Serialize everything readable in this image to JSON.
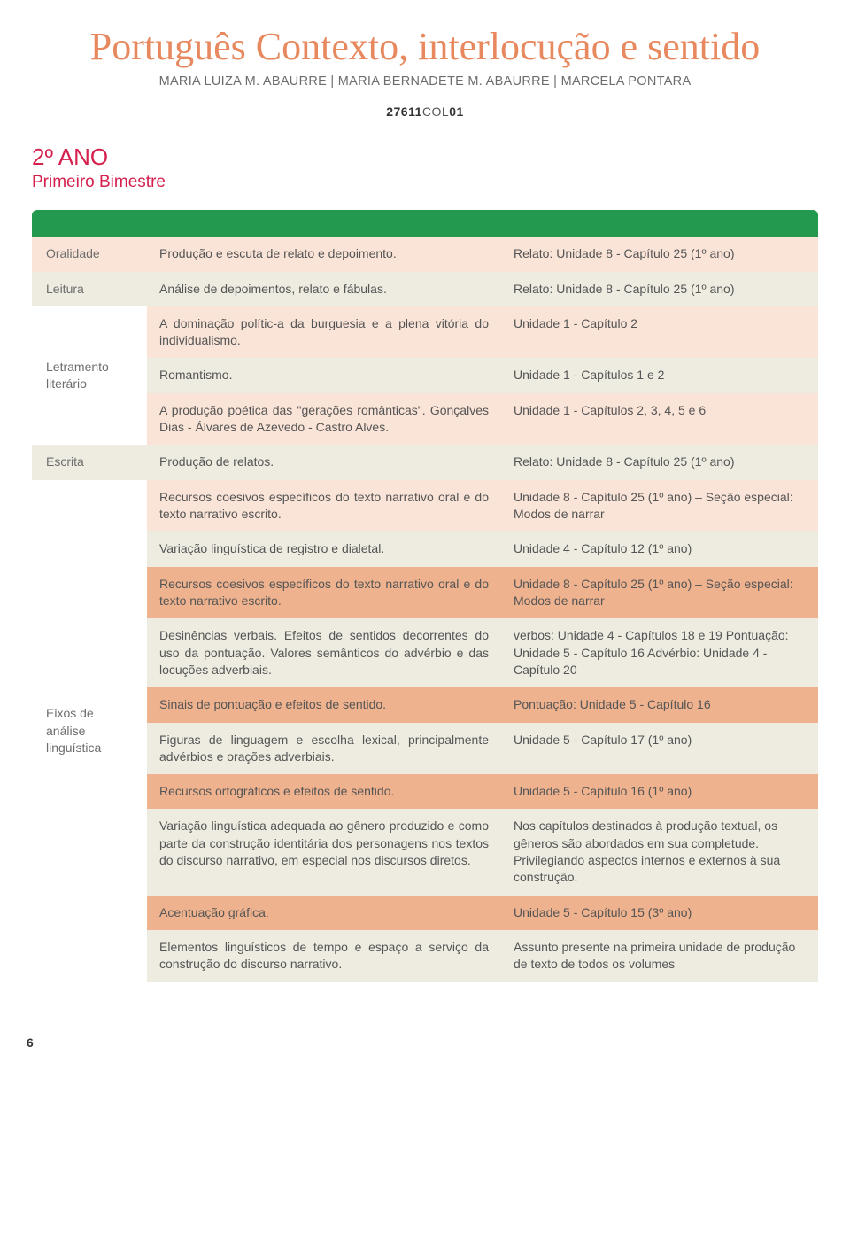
{
  "header": {
    "title": "Português Contexto, interlocução e sentido",
    "authors": "MARIA LUIZA M. ABAURRE | MARIA BERNADETE M. ABAURRE | MARCELA PONTARA",
    "code_prefix": "27611",
    "code_mid": "COL",
    "code_suffix": "01",
    "year": "2º ANO",
    "bimester": "Primeiro Bimestre"
  },
  "colors": {
    "title": "#e7885e",
    "accent": "#d5204e",
    "greenbar": "#22994f",
    "row_light": "#fae4d7",
    "row_ecru": "#eeece1",
    "row_salmon": "#eeb28e"
  },
  "categories": {
    "oralidade": "Oralidade",
    "leitura": "Leitura",
    "letramento": "Letramento literário",
    "escrita": "Escrita",
    "eixos": "Eixos de análise linguística"
  },
  "rows": [
    {
      "d": "Produção e escuta de relato e depoimento.",
      "r": "Relato: Unidade 8 - Capítulo 25 (1º ano)"
    },
    {
      "d": "Análise de depoimentos, relato e fábulas.",
      "r": "Relato: Unidade 8 - Capítulo 25 (1º ano)"
    },
    {
      "d": "A dominação polític-a da burguesia e a plena vitória do individualismo.",
      "r": "Unidade 1 - Capítulo 2"
    },
    {
      "d": "Romantismo.",
      "r": "Unidade 1 - Capítulos 1 e 2"
    },
    {
      "d": "A produção poética das \"gerações românticas\". Gonçalves Dias - Álvares de Azevedo - Castro Alves.",
      "r": "Unidade 1 - Capítulos 2, 3, 4, 5 e 6"
    },
    {
      "d": "Produção de relatos.",
      "r": "Relato: Unidade 8 - Capítulo 25 (1º ano)"
    },
    {
      "d": "Recursos coesivos específicos do texto narrativo oral e do texto narrativo escrito.",
      "r": "Unidade 8 - Capítulo 25 (1º ano) – Seção especial: Modos de narrar"
    },
    {
      "d": "Variação linguística de registro e dialetal.",
      "r": "Unidade 4 - Capítulo 12 (1º ano)"
    },
    {
      "d": "Recursos coesivos específicos do texto narrativo oral e do texto narrativo escrito.",
      "r": "Unidade 8 - Capítulo 25 (1º ano) – Seção especial: Modos de narrar"
    },
    {
      "d": "Desinências verbais. Efeitos de sentidos decorrentes do uso da pontuação. Valores semânticos do advérbio e das locuções adverbiais.",
      "r": "verbos: Unidade 4 - Capítulos 18 e 19 Pontuação: Unidade 5 - Capítulo 16 Advérbio: Unidade 4 - Capítulo 20"
    },
    {
      "d": "Sinais de pontuação e efeitos de sentido.",
      "r": "Pontuação: Unidade 5 - Capítulo 16"
    },
    {
      "d": "Figuras de linguagem e escolha lexical, principalmente advérbios e orações adverbiais.",
      "r": "Unidade 5 - Capítulo 17 (1º ano)"
    },
    {
      "d": "Recursos ortográficos e efeitos de sentido.",
      "r": "Unidade 5 - Capítulo 16 (1º ano)"
    },
    {
      "d": "Variação linguística adequada ao gênero produzido e como parte da construção identitária dos personagens nos textos do discurso narrativo, em especial nos discursos diretos.",
      "r": "Nos capítulos destinados à produção textual, os gêneros são abordados em sua completude. Privilegiando aspectos internos e externos à sua construção."
    },
    {
      "d": "Acentuação gráfica.",
      "r": "Unidade 5 - Capítulo 15 (3º ano)"
    },
    {
      "d": "Elementos linguísticos de tempo e espaço a serviço da construção do discurso narrativo.",
      "r": "Assunto presente na primeira unidade de produção de texto de todos os volumes"
    }
  ],
  "page_number": "6"
}
